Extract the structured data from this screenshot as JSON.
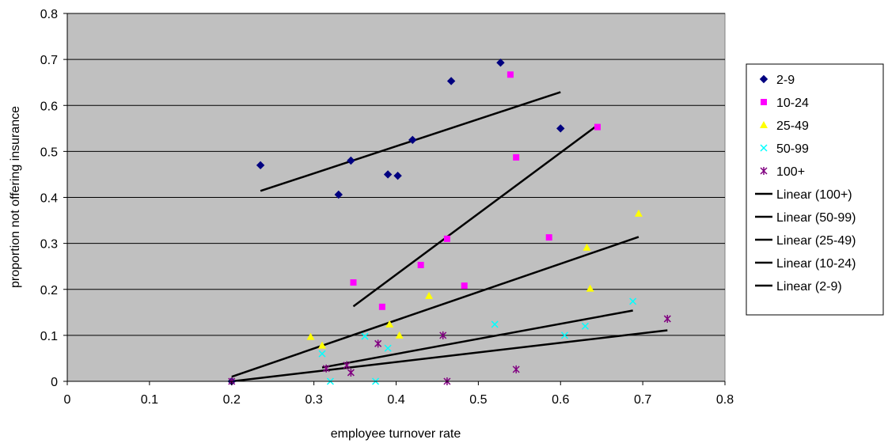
{
  "chart_data": {
    "type": "scatter",
    "title": "",
    "xlabel": "employee turnover rate",
    "ylabel": "proportion not offering insurance",
    "xlim": [
      0,
      0.8
    ],
    "ylim": [
      0,
      0.8
    ],
    "xticks": [
      0,
      0.1,
      0.2,
      0.3,
      0.4,
      0.5,
      0.6,
      0.7,
      0.8
    ],
    "yticks": [
      0,
      0.1,
      0.2,
      0.3,
      0.4,
      0.5,
      0.6,
      0.7,
      0.8
    ],
    "xtick_labels": [
      "0",
      "0.1",
      "0.2",
      "0.3",
      "0.4",
      "0.5",
      "0.6",
      "0.7",
      "0.8"
    ],
    "ytick_labels": [
      "0",
      "0.1",
      "0.2",
      "0.3",
      "0.4",
      "0.5",
      "0.6",
      "0.7",
      "0.8"
    ],
    "grid": "horizontal",
    "plot_background": "#c0c0c0",
    "legend_position": "right",
    "series": [
      {
        "name": "2-9",
        "marker": "diamond",
        "color": "#000080",
        "points": [
          [
            0.235,
            0.47
          ],
          [
            0.33,
            0.406
          ],
          [
            0.345,
            0.48
          ],
          [
            0.39,
            0.45
          ],
          [
            0.402,
            0.447
          ],
          [
            0.42,
            0.525
          ],
          [
            0.467,
            0.653
          ],
          [
            0.527,
            0.693
          ],
          [
            0.6,
            0.55
          ],
          [
            0.2,
            0.0
          ]
        ]
      },
      {
        "name": "10-24",
        "marker": "square",
        "color": "#ff00ff",
        "points": [
          [
            0.348,
            0.215
          ],
          [
            0.383,
            0.162
          ],
          [
            0.43,
            0.253
          ],
          [
            0.462,
            0.31
          ],
          [
            0.483,
            0.208
          ],
          [
            0.539,
            0.667
          ],
          [
            0.546,
            0.487
          ],
          [
            0.586,
            0.313
          ],
          [
            0.645,
            0.553
          ]
        ]
      },
      {
        "name": "25-49",
        "marker": "triangle",
        "color": "#ffff00",
        "points": [
          [
            0.296,
            0.097
          ],
          [
            0.31,
            0.078
          ],
          [
            0.392,
            0.124
          ],
          [
            0.404,
            0.1
          ],
          [
            0.44,
            0.186
          ],
          [
            0.632,
            0.291
          ],
          [
            0.636,
            0.202
          ],
          [
            0.695,
            0.365
          ]
        ]
      },
      {
        "name": "50-99",
        "marker": "x",
        "color": "#00ffff",
        "points": [
          [
            0.31,
            0.06
          ],
          [
            0.32,
            0.0
          ],
          [
            0.362,
            0.098
          ],
          [
            0.375,
            0.0
          ],
          [
            0.39,
            0.072
          ],
          [
            0.52,
            0.124
          ],
          [
            0.605,
            0.1
          ],
          [
            0.63,
            0.12
          ],
          [
            0.688,
            0.174
          ]
        ]
      },
      {
        "name": "100+",
        "marker": "star",
        "color": "#800080",
        "points": [
          [
            0.2,
            0.0
          ],
          [
            0.315,
            0.028
          ],
          [
            0.34,
            0.035
          ],
          [
            0.345,
            0.019
          ],
          [
            0.378,
            0.082
          ],
          [
            0.457,
            0.1
          ],
          [
            0.462,
            0.0
          ],
          [
            0.546,
            0.026
          ],
          [
            0.73,
            0.136
          ]
        ]
      }
    ],
    "trendlines": [
      {
        "name": "Linear (100+)",
        "color": "#000000",
        "x": [
          0.2,
          0.73
        ],
        "y": [
          0.0,
          0.111
        ]
      },
      {
        "name": "Linear (50-99)",
        "color": "#000000",
        "x": [
          0.31,
          0.688
        ],
        "y": [
          0.03,
          0.154
        ]
      },
      {
        "name": "Linear (25-49)",
        "color": "#000000",
        "x": [
          0.2,
          0.695
        ],
        "y": [
          0.01,
          0.314
        ]
      },
      {
        "name": "Linear (10-24)",
        "color": "#000000",
        "x": [
          0.348,
          0.645
        ],
        "y": [
          0.163,
          0.557
        ]
      },
      {
        "name": "Linear (2-9)",
        "color": "#000000",
        "x": [
          0.235,
          0.6
        ],
        "y": [
          0.414,
          0.629
        ]
      }
    ],
    "legend": [
      "2-9",
      "10-24",
      "25-49",
      "50-99",
      "100+",
      "Linear (100+)",
      "Linear (50-99)",
      "Linear (25-49)",
      "Linear (10-24)",
      "Linear (2-9)"
    ]
  }
}
